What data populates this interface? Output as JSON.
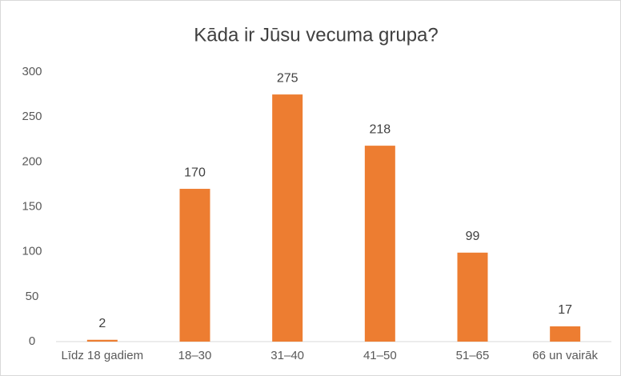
{
  "chart_data": {
    "type": "bar",
    "title": "Kāda ir Jūsu vecuma grupa?",
    "categories": [
      "Līdz 18 gadiem",
      "18–30",
      "31–40",
      "41–50",
      "51–65",
      "66 un vairāk"
    ],
    "values": [
      2,
      170,
      275,
      218,
      99,
      17
    ],
    "color": "#ed7d31",
    "ylim": [
      0,
      300
    ],
    "yticks": [
      0,
      50,
      100,
      150,
      200,
      250,
      300
    ],
    "grid": false
  }
}
